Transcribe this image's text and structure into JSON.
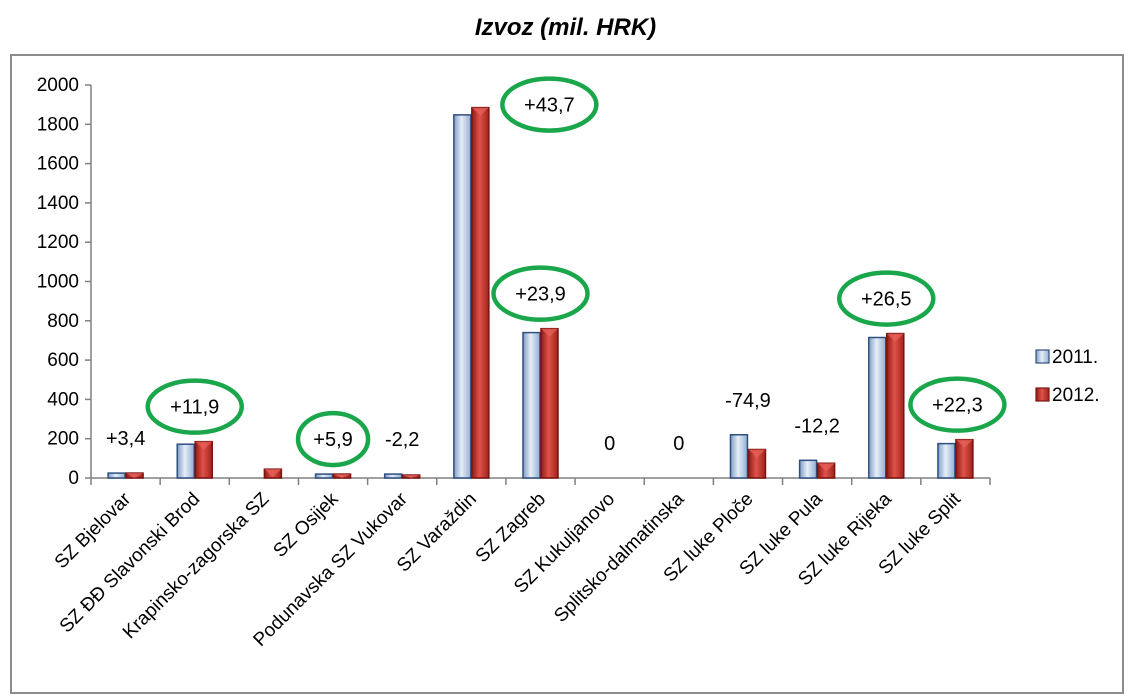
{
  "chart_data": {
    "type": "bar",
    "title": "Izvoz (mil. HRK)",
    "xlabel": "",
    "ylabel": "",
    "ylim": [
      0,
      2000
    ],
    "yticks": [
      0,
      200,
      400,
      600,
      800,
      1000,
      1200,
      1400,
      1600,
      1800,
      2000
    ],
    "grid": false,
    "legend_position": "right",
    "categories": [
      "SZ Bjelovar",
      "SZ ĐĐ Slavonski Brod",
      "Krapinsko-zagorska SZ",
      "SZ Osijek",
      "Podunavska SZ Vukovar",
      "SZ Varaždin",
      "SZ Zagreb",
      "SZ Kukuljanovo",
      "Splitsko-dalmatinska",
      "SZ luke Ploče",
      "SZ luke Pula",
      "SZ luke Rijeka",
      "SZ luke Split"
    ],
    "series": [
      {
        "name": "2011.",
        "color": "#b9cde5",
        "values": [
          25,
          172,
          0,
          20,
          20,
          1848,
          740,
          0,
          0,
          220,
          90,
          715,
          175
        ]
      },
      {
        "name": "2012.",
        "color": "#c0392b",
        "values": [
          25,
          185,
          45,
          20,
          15,
          1885,
          760,
          0,
          0,
          145,
          75,
          735,
          195
        ]
      }
    ],
    "annotations": [
      {
        "category_index": 0,
        "text": "+3,4",
        "circled": false
      },
      {
        "category_index": 1,
        "text": "+11,9",
        "circled": true
      },
      {
        "category_index": 3,
        "text": "+5,9",
        "circled": true
      },
      {
        "category_index": 4,
        "text": "-2,2",
        "circled": false
      },
      {
        "category_index": 5,
        "text": "+43,7",
        "circled": true
      },
      {
        "category_index": 6,
        "text": "+23,9",
        "circled": true
      },
      {
        "category_index": 7,
        "text": "0",
        "circled": false
      },
      {
        "category_index": 8,
        "text": "0",
        "circled": false
      },
      {
        "category_index": 9,
        "text": "-74,9",
        "circled": false
      },
      {
        "category_index": 10,
        "text": "-12,2",
        "circled": false
      },
      {
        "category_index": 11,
        "text": "+26,5",
        "circled": true
      },
      {
        "category_index": 12,
        "text": "+22,3",
        "circled": true
      }
    ],
    "annotation_circle_color": "#1aa64a"
  }
}
